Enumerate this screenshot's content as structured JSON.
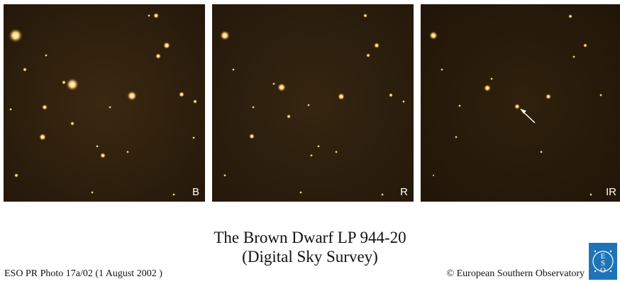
{
  "panels": [
    {
      "band": "B"
    },
    {
      "band": "R"
    },
    {
      "band": "IR"
    }
  ],
  "caption": {
    "title": "The Brown Dwarf LP 944-20",
    "subtitle": "(Digital Sky Survey)"
  },
  "footer": {
    "photo_id": "ESO PR Photo 17a/02 (1 August 2002 )",
    "credit": "© European Southern Observatory"
  },
  "logo": {
    "text": "ESO"
  },
  "colors": {
    "sky": "#2a1c08",
    "star": "#ffe3a6",
    "logo": "#1f74b8"
  }
}
